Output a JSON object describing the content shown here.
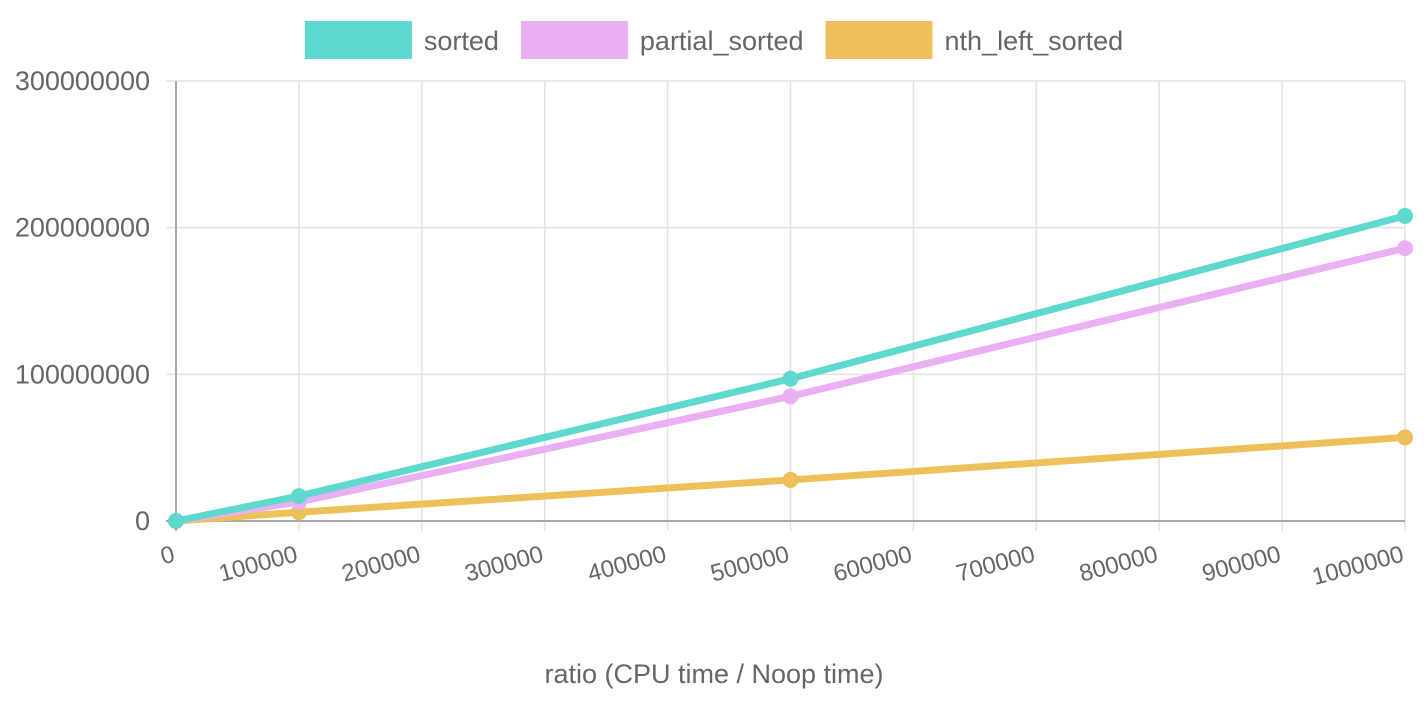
{
  "chart_data": {
    "type": "line",
    "title": "",
    "xlabel": "ratio (CPU time / Noop time)",
    "ylabel": "",
    "xlim": [
      0,
      1000000
    ],
    "ylim": [
      0,
      300000000
    ],
    "x_ticks": [
      "0",
      "100000",
      "200000",
      "300000",
      "400000",
      "500000",
      "600000",
      "700000",
      "800000",
      "900000",
      "1000000"
    ],
    "y_ticks": [
      "0",
      "100000000",
      "200000000",
      "300000000"
    ],
    "grid": true,
    "legend_position": "top",
    "series": [
      {
        "name": "sorted",
        "color": "#5fd9cd",
        "x": [
          0,
          100000,
          500000,
          1000000
        ],
        "y": [
          0,
          17000000,
          97000000,
          208000000
        ]
      },
      {
        "name": "partial_sorted",
        "color": "#eab0f3",
        "x": [
          0,
          100000,
          500000,
          1000000
        ],
        "y": [
          0,
          13000000,
          85000000,
          186000000
        ]
      },
      {
        "name": "nth_left_sorted",
        "color": "#edc05a",
        "x": [
          0,
          100000,
          500000,
          1000000
        ],
        "y": [
          0,
          6000000,
          28000000,
          57000000
        ]
      }
    ]
  }
}
